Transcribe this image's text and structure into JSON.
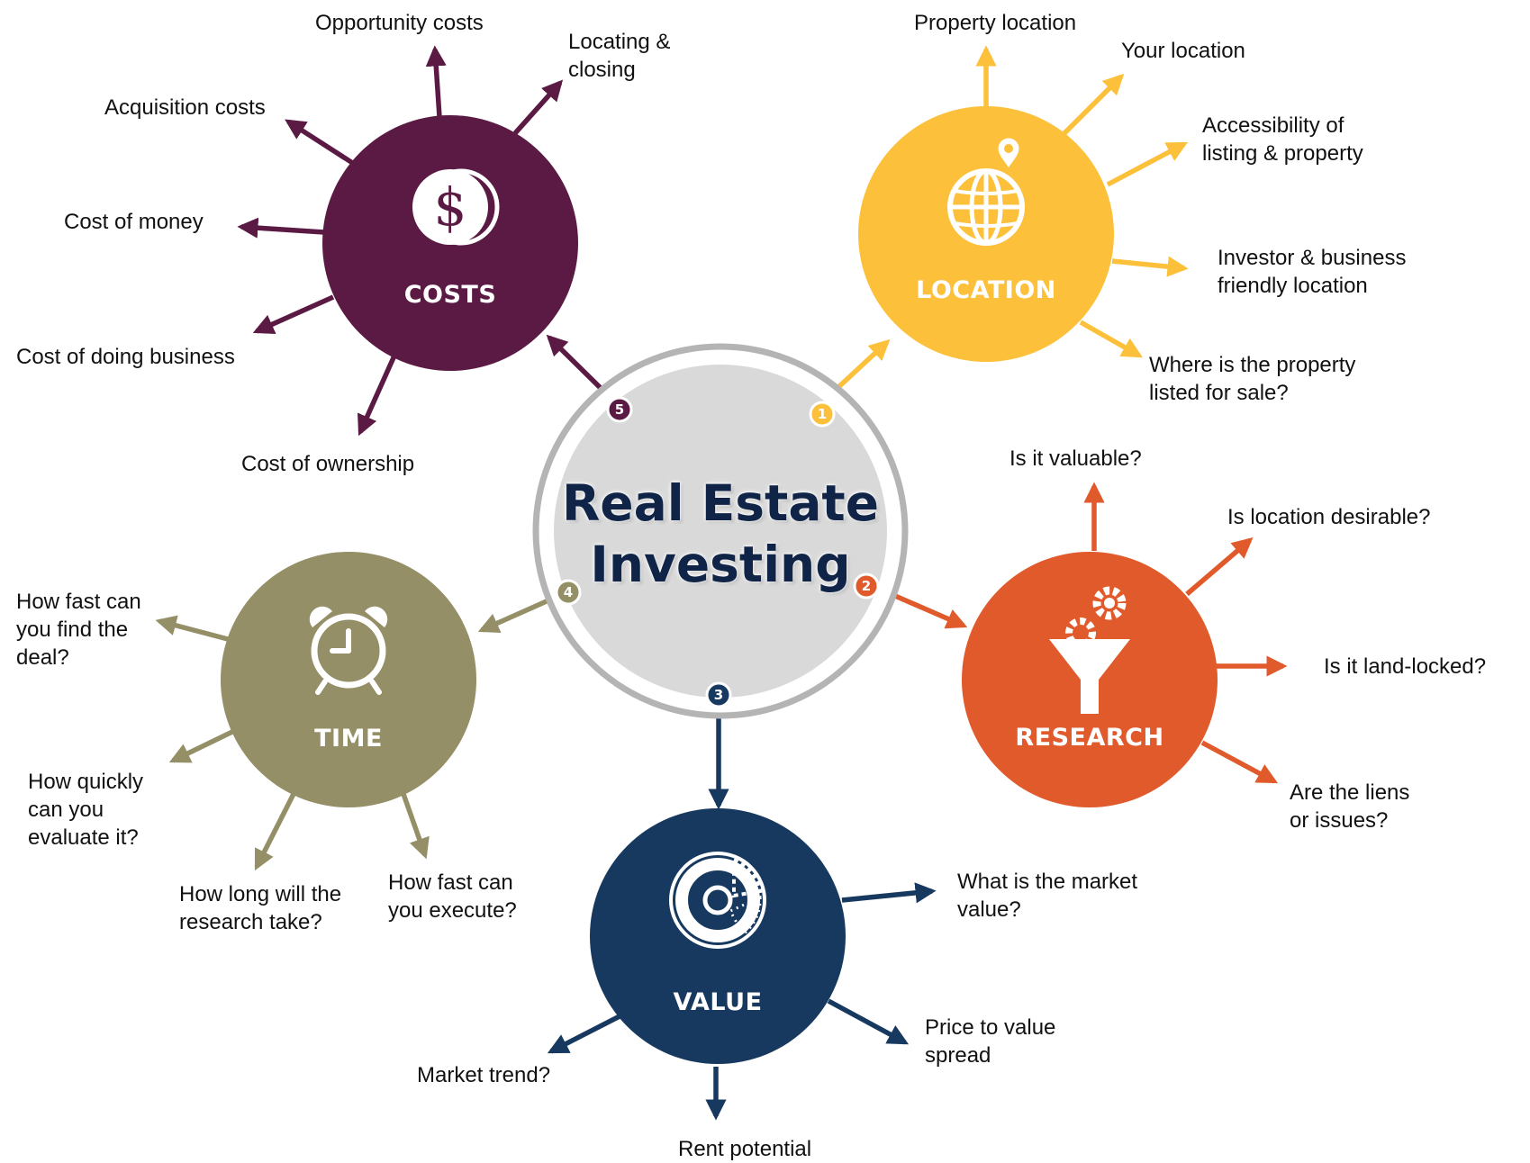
{
  "title": {
    "line1": "Real Estate",
    "line2": "Investing"
  },
  "colors": {
    "costs": "#5a1a43",
    "location": "#fcc03a",
    "research": "#e05a2c",
    "value": "#17395f",
    "time": "#948f66",
    "center_fill": "#d9d9d9",
    "center_ring": "#b4b4b4"
  },
  "hubs": {
    "location": {
      "label": "LOCATION",
      "step": "1",
      "icon": "globe-pin-icon",
      "items": [
        [
          "Property location"
        ],
        [
          "Your location"
        ],
        [
          "Accessibility of",
          "listing & property"
        ],
        [
          "Investor & business",
          "friendly location"
        ],
        [
          "Where is the property",
          "listed for sale?"
        ]
      ]
    },
    "research": {
      "label": "RESEARCH",
      "step": "2",
      "icon": "funnel-gears-icon",
      "items": [
        [
          "Is it valuable?"
        ],
        [
          "Is location desirable?"
        ],
        [
          "Is it land-locked?"
        ],
        [
          "Are the liens",
          "or issues?"
        ]
      ]
    },
    "value": {
      "label": "VALUE",
      "step": "3",
      "icon": "donut-chart-icon",
      "items": [
        [
          "What is the market",
          "value?"
        ],
        [
          "Price to value",
          "spread"
        ],
        [
          "Rent potential"
        ],
        [
          "Market trend?"
        ]
      ]
    },
    "time": {
      "label": "TIME",
      "step": "4",
      "icon": "alarm-clock-icon",
      "items": [
        [
          "How fast can",
          "you find the",
          "deal?"
        ],
        [
          "How quickly",
          "can you",
          "evaluate it?"
        ],
        [
          "How long will the",
          "research take?"
        ],
        [
          "How fast can",
          "you execute?"
        ]
      ]
    },
    "costs": {
      "label": "COSTS",
      "step": "5",
      "icon": "dollar-coin-icon",
      "items": [
        [
          "Opportunity costs"
        ],
        [
          "Locating &",
          "closing"
        ],
        [
          "Acquisition costs"
        ],
        [
          "Cost of money"
        ],
        [
          "Cost of doing business"
        ],
        [
          "Cost of ownership"
        ]
      ]
    }
  }
}
